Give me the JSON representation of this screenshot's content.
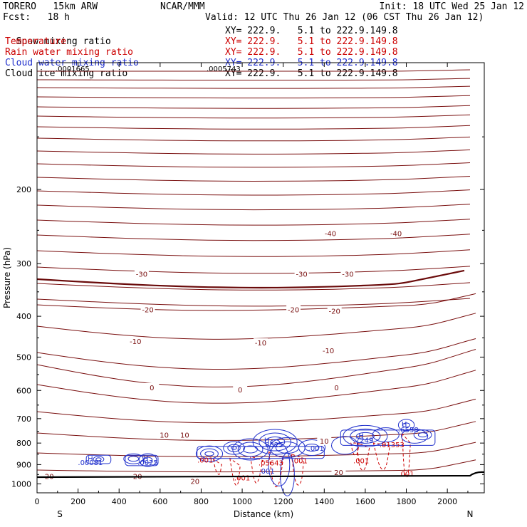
{
  "header": {
    "model": "TORERO   15km ARW",
    "org": "NCAR/MMM",
    "init": "Init: 18 UTC Wed 25 Jan 12",
    "fcst": "Fcst:   18 h",
    "valid": "Valid: 12 UTC Thu 26 Jan 12 (06 CST Thu 26 Jan 12)",
    "fields": [
      {
        "name": "Snow mixing ratio",
        "xy": "XY= 222.9.   5.1 to 222.9.149.8",
        "color": "#000000",
        "extra": ""
      },
      {
        "name": "Temperature",
        "xy": "XY= 222.9.   5.1 to 222.9.149.8",
        "color": "#cc0000",
        "extra": ""
      },
      {
        "name": "Rain water mixing ratio",
        "xy": "XY= 222.9.   5.1 to 222.9.149.8",
        "color": "#cc0000",
        "extra": ""
      },
      {
        "name": "Cloud water mixing ratio",
        "xy": "XY= 222.9.   5.1 to 222.9.149.8",
        "color": "#1f2fcc",
        "extra": ".0005743"
      },
      {
        "name": "Cloud ice mixing ratio",
        "xy": "XY= 222.9.   5.1 to 222.9.149.8",
        "color": "#000000",
        "extra": ".0001665"
      }
    ]
  },
  "chart_data": {
    "type": "contour",
    "xlabel": "Distance (km)",
    "ylabel": "Pressure (hPa)",
    "xlim": [
      0,
      2180
    ],
    "ylim": [
      1050,
      100
    ],
    "y_scale": "log",
    "x_ticks": [
      0,
      200,
      400,
      600,
      800,
      1000,
      1200,
      1400,
      1600,
      1800,
      2000
    ],
    "y_ticks": [
      200,
      300,
      400,
      500,
      600,
      700,
      800,
      900,
      1000
    ],
    "x_end_labels": {
      "left": "S",
      "right": "N"
    },
    "temperature_isotherm_labels": [
      {
        "text": "-40",
        "x": 1430,
        "p": 254
      },
      {
        "text": "-40",
        "x": 1750,
        "p": 254
      },
      {
        "text": "-30",
        "x": 510,
        "p": 317
      },
      {
        "text": "-30",
        "x": 1290,
        "p": 317
      },
      {
        "text": "-30",
        "x": 1515,
        "p": 317
      },
      {
        "text": "-20",
        "x": 540,
        "p": 385
      },
      {
        "text": "-20",
        "x": 1250,
        "p": 385
      },
      {
        "text": "-20",
        "x": 1450,
        "p": 388
      },
      {
        "text": "-10",
        "x": 480,
        "p": 458
      },
      {
        "text": "-10",
        "x": 1090,
        "p": 462
      },
      {
        "text": "-10",
        "x": 1420,
        "p": 482
      },
      {
        "text": "0",
        "x": 560,
        "p": 590
      },
      {
        "text": "0",
        "x": 990,
        "p": 597
      },
      {
        "text": "0",
        "x": 1460,
        "p": 590
      },
      {
        "text": "10",
        "x": 620,
        "p": 765
      },
      {
        "text": "10",
        "x": 720,
        "p": 765
      },
      {
        "text": "10",
        "x": 1400,
        "p": 790
      },
      {
        "text": "20",
        "x": 60,
        "p": 958
      },
      {
        "text": "20",
        "x": 490,
        "p": 958
      },
      {
        "text": "20",
        "x": 770,
        "p": 985
      },
      {
        "text": "20",
        "x": 1470,
        "p": 937
      }
    ],
    "cloud_water_labels": [
      {
        "text": "H",
        "x": 260,
        "p": 870
      },
      {
        "text": ".00081",
        "x": 260,
        "p": 888
      },
      {
        "text": "H",
        "x": 530,
        "p": 870
      },
      {
        "text": ".0025",
        "x": 540,
        "p": 888
      },
      {
        "text": "H",
        "x": 1120,
        "p": 785
      },
      {
        "text": ".8525",
        "x": 1150,
        "p": 806
      },
      {
        "text": ".001",
        "x": 1360,
        "p": 822
      },
      {
        "text": ".001",
        "x": 1120,
        "p": 930
      },
      {
        "text": "H",
        "x": 1580,
        "p": 768
      },
      {
        "text": ".7249",
        "x": 1590,
        "p": 786
      },
      {
        "text": "H",
        "x": 1790,
        "p": 720
      },
      {
        "text": ".6558",
        "x": 1810,
        "p": 742
      }
    ],
    "rain_water_labels": [
      {
        "text": ".001",
        "x": 1000,
        "p": 965
      },
      {
        "text": ".05643",
        "x": 1140,
        "p": 890
      },
      {
        "text": ".001",
        "x": 1280,
        "p": 880
      },
      {
        "text": ".01353",
        "x": 1730,
        "p": 806
      },
      {
        "text": ".001",
        "x": 1580,
        "p": 880
      },
      {
        "text": ".001",
        "x": 1800,
        "p": 945
      },
      {
        "text": ".001",
        "x": 820,
        "p": 876
      }
    ],
    "colors": {
      "isotherm": "#7a1010",
      "zero_isotherm": "#6a0a0a",
      "rain": "#cc0000",
      "cloud_water": "#1f2fcc",
      "snow": "#000000",
      "ice": "#000000",
      "ground": "#000000"
    }
  }
}
